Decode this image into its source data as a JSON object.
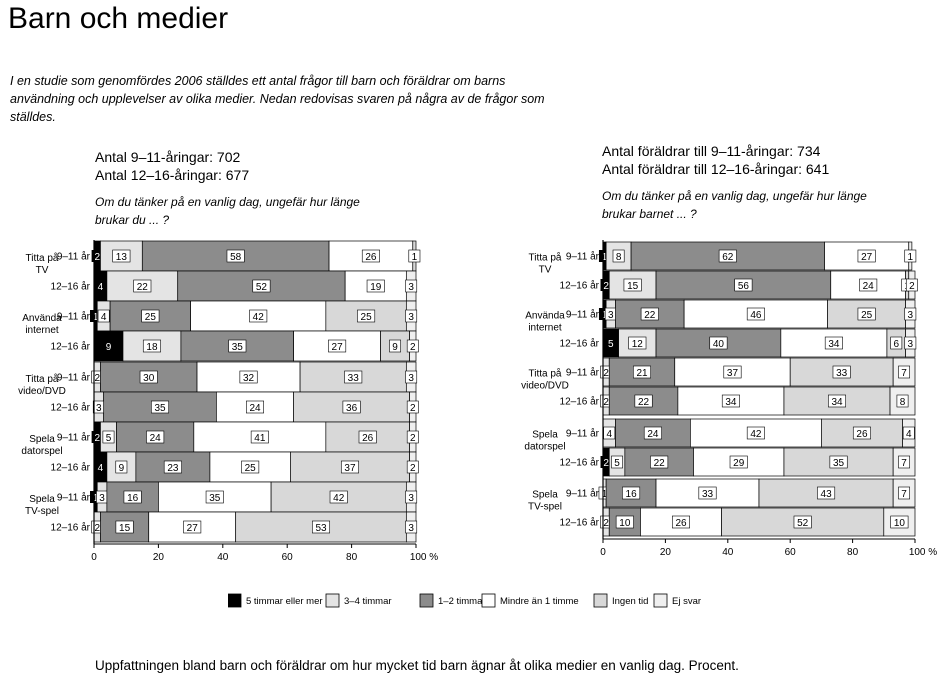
{
  "title": "Barn och medier",
  "intro": "I en studie som genomfördes 2006 ställdes ett antal frågor till barn och föräldrar om barns användning och upplevelser av olika medier. Nedan redovisas svaren på några av de frågor som ställdes.",
  "caption": "Uppfattningen bland barn och föräldrar om hur mycket tid barn ägnar åt olika medier en vanlig dag. Procent.",
  "colors": {
    "5+": "#000000",
    "3-4": "#e4e4e4",
    "1-2": "#8c8c8c",
    "lt1": "#ffffff",
    "none": "#d8d8d8",
    "dk": "#efefef"
  },
  "left_panel": {
    "line1": "Antal 9–11-åringar: 702",
    "line2": "Antal 12–16-åringar: 677",
    "question": "Om du tänker på en vanlig dag, ungefär hur länge brukar du ... ?"
  },
  "right_panel": {
    "line1": "Antal föräldrar till 9–11-åringar: 734",
    "line2": "Antal föräldrar till 12–16-åringar: 641",
    "question": "Om du tänker på en vanlig dag, ungefär hur länge brukar barnet ... ?"
  },
  "chart_data": [
    {
      "type": "bar",
      "orientation": "horizontal",
      "stacked": true,
      "respondents": "barn",
      "xlim": [
        0,
        100
      ],
      "xticks": [
        "0",
        "20",
        "40",
        "60",
        "80",
        "100 %"
      ],
      "legend_position": "bottom",
      "series": [
        "5 timmar eller mer",
        "3–4 timmar",
        "1–2 timmar",
        "Mindre än 1 timme",
        "Ingen tid",
        "Ej svar"
      ],
      "groups": [
        {
          "label": "Titta på TV",
          "rows": [
            {
              "age": "9–11 år",
              "values": [
                2,
                13,
                58,
                26,
                1,
                0
              ]
            },
            {
              "age": "12–16 år",
              "values": [
                4,
                22,
                52,
                19,
                0,
                3
              ]
            }
          ]
        },
        {
          "label": "Använda internet",
          "rows": [
            {
              "age": "9–11 år",
              "values": [
                1,
                4,
                25,
                42,
                25,
                3
              ]
            },
            {
              "age": "12–16 år",
              "values": [
                9,
                18,
                35,
                27,
                9,
                2
              ]
            }
          ]
        },
        {
          "label": "Titta på video/DVD",
          "rows": [
            {
              "age": "9–11 år",
              "values": [
                0,
                2,
                30,
                32,
                33,
                3
              ]
            },
            {
              "age": "12–16 år",
              "values": [
                0,
                3,
                35,
                24,
                36,
                2
              ]
            }
          ]
        },
        {
          "label": "Spela datorspel",
          "rows": [
            {
              "age": "9–11 år",
              "values": [
                2,
                5,
                24,
                41,
                26,
                2
              ]
            },
            {
              "age": "12–16 år",
              "values": [
                4,
                9,
                23,
                25,
                37,
                2
              ]
            }
          ]
        },
        {
          "label": "Spela TV-spel",
          "rows": [
            {
              "age": "9–11 år",
              "values": [
                1,
                3,
                16,
                35,
                42,
                3
              ]
            },
            {
              "age": "12–16 år",
              "values": [
                0,
                2,
                15,
                27,
                53,
                3
              ]
            }
          ]
        }
      ]
    },
    {
      "type": "bar",
      "orientation": "horizontal",
      "stacked": true,
      "respondents": "föräldrar",
      "xlim": [
        0,
        100
      ],
      "xticks": [
        "0",
        "20",
        "40",
        "60",
        "80",
        "100 %"
      ],
      "legend_position": "bottom",
      "series": [
        "5 timmar eller mer",
        "3–4 timmar",
        "1–2 timmar",
        "Mindre än 1 timme",
        "Ingen tid",
        "Ej svar"
      ],
      "groups": [
        {
          "label": "Titta på TV",
          "rows": [
            {
              "age": "9–11 år",
              "values": [
                1,
                8,
                62,
                27,
                0,
                1
              ]
            },
            {
              "age": "12–16 år",
              "values": [
                2,
                15,
                56,
                24,
                1,
                2
              ]
            }
          ]
        },
        {
          "label": "Använda internet",
          "rows": [
            {
              "age": "9–11 år",
              "values": [
                1,
                3,
                22,
                46,
                25,
                3
              ]
            },
            {
              "age": "12–16 år",
              "values": [
                5,
                12,
                40,
                34,
                6,
                3
              ]
            }
          ]
        },
        {
          "label": "Titta på video/DVD",
          "rows": [
            {
              "age": "9–11 år",
              "values": [
                0,
                2,
                21,
                37,
                33,
                7
              ]
            },
            {
              "age": "12–16 år",
              "values": [
                0,
                2,
                22,
                34,
                34,
                8
              ]
            }
          ]
        },
        {
          "label": "Spela datorspel",
          "rows": [
            {
              "age": "9–11 år",
              "values": [
                0,
                4,
                24,
                42,
                26,
                4
              ]
            },
            {
              "age": "12–16 år",
              "values": [
                2,
                5,
                22,
                29,
                35,
                7
              ]
            }
          ]
        },
        {
          "label": "Spela TV-spel",
          "rows": [
            {
              "age": "9–11 år",
              "values": [
                0,
                1,
                16,
                33,
                43,
                7
              ]
            },
            {
              "age": "12–16 år",
              "values": [
                0,
                2,
                10,
                26,
                52,
                10
              ]
            }
          ]
        }
      ]
    }
  ],
  "legend": [
    {
      "key": "5+",
      "label": "5 timmar eller mer"
    },
    {
      "key": "3-4",
      "label": "3–4 timmar"
    },
    {
      "key": "1-2",
      "label": "1–2 timmar"
    },
    {
      "key": "lt1",
      "label": "Mindre än 1 timme"
    },
    {
      "key": "none",
      "label": "Ingen tid"
    },
    {
      "key": "dk",
      "label": "Ej svar"
    }
  ]
}
